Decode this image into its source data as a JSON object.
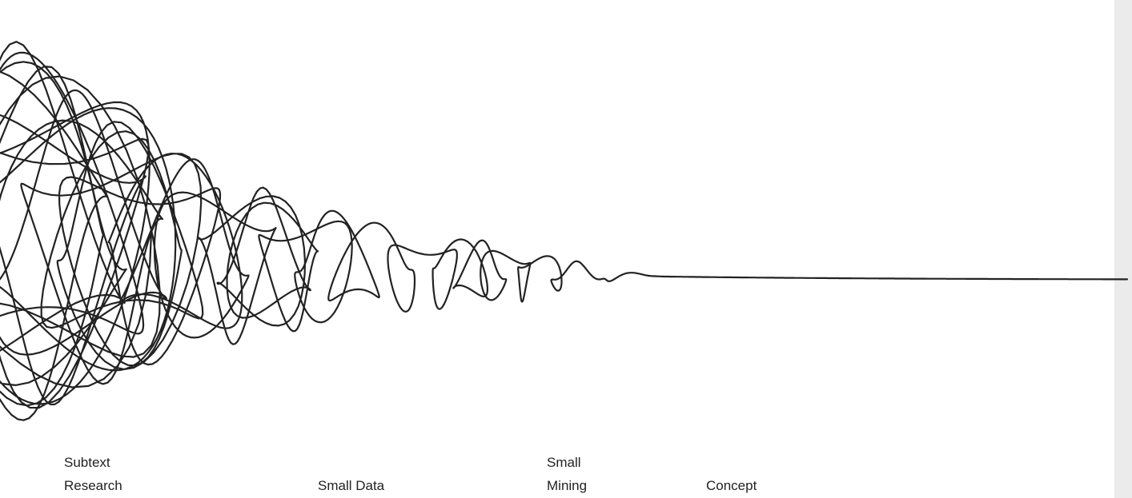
{
  "labels": [
    [
      "Subtext",
      "Research"
    ],
    [
      "Small Data"
    ],
    [
      "Small",
      "Mining"
    ],
    [
      "Concept"
    ]
  ]
}
